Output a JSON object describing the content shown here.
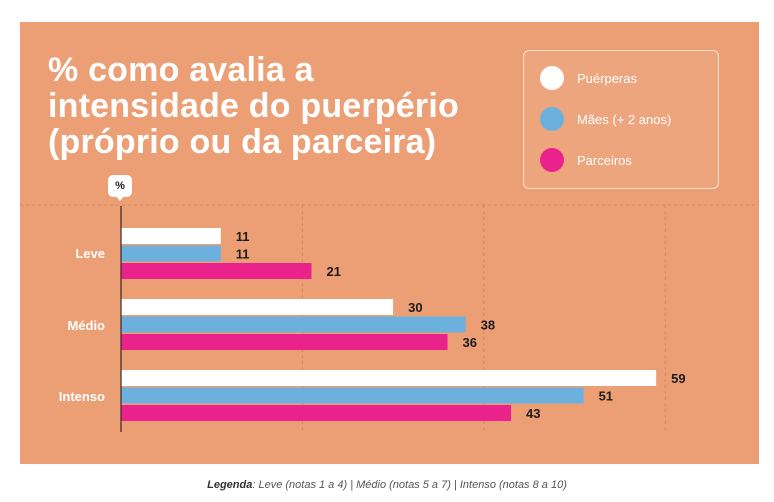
{
  "chart_data": {
    "type": "bar",
    "orientation": "horizontal",
    "title_lines": [
      "% como avalia a",
      "intensidade do puerpério",
      "(próprio ou da parceira)"
    ],
    "axis_unit_label": "%",
    "categories": [
      "Leve",
      "Médio",
      "Intenso"
    ],
    "series": [
      {
        "name": "Puérperas",
        "color": "#ffffff",
        "values": [
          11,
          30,
          59
        ]
      },
      {
        "name": "Mães (+ 2 anos)",
        "color": "#6cb0de",
        "values": [
          11,
          38,
          51
        ]
      },
      {
        "name": "Parceiros",
        "color": "#e9238b",
        "values": [
          21,
          36,
          43
        ]
      }
    ],
    "xlim": [
      0,
      60
    ],
    "grid": true,
    "legend_position": "top-right"
  },
  "footer": {
    "label": "Legenda",
    "text": ": Leve (notas 1 a 4) | Médio (notas 5 a 7) | Intenso (notas 8 a 10)"
  },
  "colors": {
    "panel_background": "#ec9f75",
    "grid_line": "#d98460"
  }
}
